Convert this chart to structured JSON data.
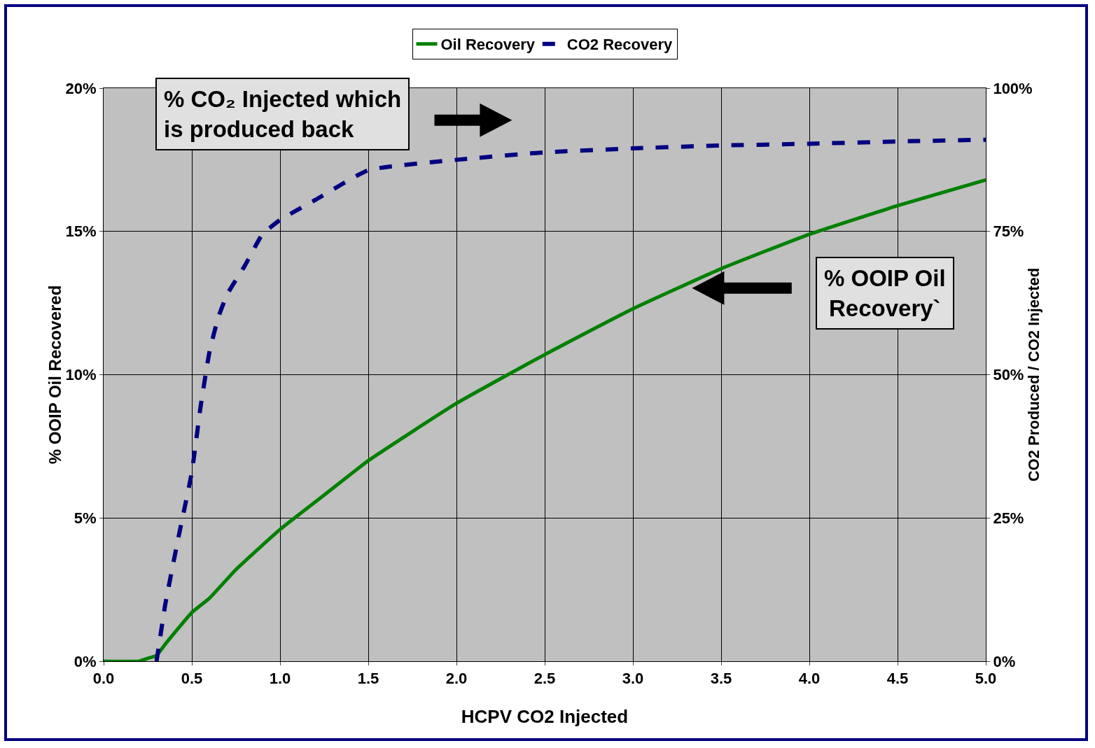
{
  "chart_data": {
    "type": "line",
    "xlabel": "HCPV CO2 Injected",
    "ylabel": "% OOIP Oil Recovered",
    "y2label": "CO2 Produced / CO2 Injected",
    "xlim": [
      0,
      5
    ],
    "xticks": [
      {
        "value": 0,
        "label": "0.0"
      },
      {
        "value": 0.5,
        "label": "0.5"
      },
      {
        "value": 1,
        "label": "1.0"
      },
      {
        "value": 1.5,
        "label": "1.5"
      },
      {
        "value": 2,
        "label": "2.0"
      },
      {
        "value": 2.5,
        "label": "2.5"
      },
      {
        "value": 3,
        "label": "3.0"
      },
      {
        "value": 3.5,
        "label": "3.5"
      },
      {
        "value": 4,
        "label": "4.0"
      },
      {
        "value": 4.5,
        "label": "4.5"
      },
      {
        "value": 5,
        "label": "5.0"
      }
    ],
    "ylim": [
      0,
      20
    ],
    "yticks": [
      {
        "value": 0,
        "label": "0%"
      },
      {
        "value": 5,
        "label": "5%"
      },
      {
        "value": 10,
        "label": "10%"
      },
      {
        "value": 15,
        "label": "15%"
      },
      {
        "value": 20,
        "label": "20%"
      }
    ],
    "y2lim": [
      0,
      100
    ],
    "y2ticks": [
      {
        "value": 0,
        "label": "0%"
      },
      {
        "value": 25,
        "label": "25%"
      },
      {
        "value": 50,
        "label": "50%"
      },
      {
        "value": 75,
        "label": "75%"
      },
      {
        "value": 100,
        "label": "100%"
      }
    ],
    "grid": true,
    "legend": "top",
    "marker": "none",
    "series": [
      {
        "name": "Oil Recovery",
        "color": "#008000",
        "line_style": "solid",
        "x": [
          0,
          0.2,
          0.25,
          0.3,
          0.35,
          0.5,
          0.6,
          0.75,
          1,
          1.25,
          1.5,
          2,
          2.5,
          3,
          3.5,
          4,
          4.5,
          5
        ],
        "values": [
          0,
          0,
          0.1,
          0.2,
          0.6,
          1.7,
          2.2,
          3.2,
          4.6,
          5.8,
          7,
          9,
          10.7,
          12.3,
          13.7,
          14.9,
          15.9,
          16.8
        ]
      },
      {
        "name": "CO2 Recovery",
        "color": "#000080",
        "line_style": "dashed",
        "axis": "y2",
        "x": [
          0.3,
          0.35,
          0.42,
          0.5,
          0.55,
          0.6,
          0.65,
          0.7,
          0.8,
          0.9,
          1,
          1.2,
          1.5,
          2,
          2.5,
          3,
          3.5,
          4,
          4.5,
          5
        ],
        "values": [
          0,
          10,
          21,
          33,
          44.5,
          54,
          60,
          64,
          69,
          74.5,
          77,
          80.5,
          85.7,
          87.5,
          88.8,
          89.5,
          90,
          90.3,
          90.7,
          91
        ]
      }
    ],
    "annotations": [
      "% CO₂ Injected which\nis produced back",
      "% OOIP Oil\nRecovery`"
    ]
  }
}
